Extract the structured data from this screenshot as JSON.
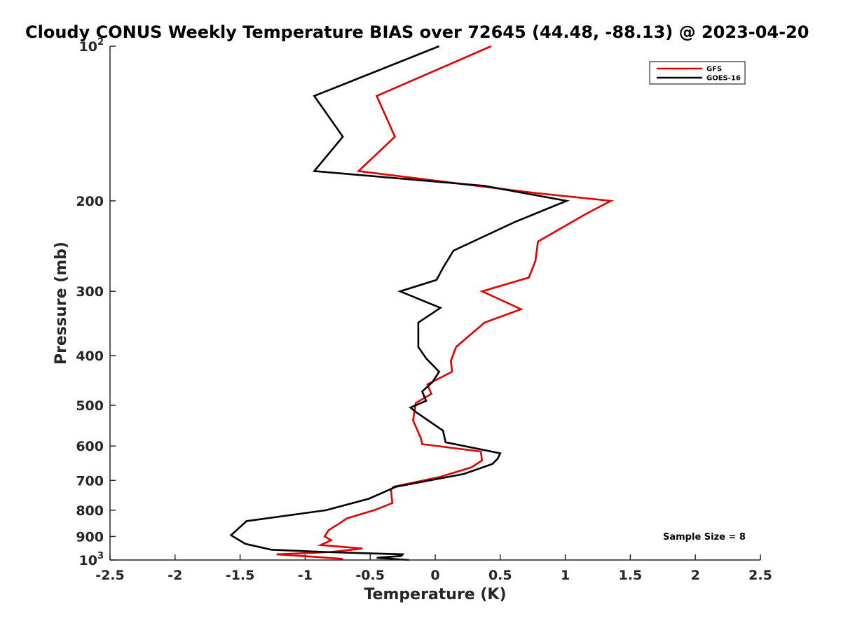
{
  "chart_data": {
    "type": "line",
    "title": "Cloudy CONUS Weekly Temperature BIAS over 72645 (44.48, -88.13) @ 2023-04-20",
    "xlabel": "Temperature (K)",
    "ylabel": "Pressure (mb)",
    "xlim": [
      -2.5,
      2.5
    ],
    "ylim": [
      100,
      1000
    ],
    "yscale": "log",
    "y_reversed": true,
    "grid": false,
    "legend_position": "top-right",
    "x_ticks": [
      -2.5,
      -2,
      -1.5,
      -1,
      -0.5,
      0,
      0.5,
      1,
      1.5,
      2,
      2.5
    ],
    "x_tick_labels": [
      "-2.5",
      "-2",
      "-1.5",
      "-1",
      "-0.5",
      "0",
      "0.5",
      "1",
      "1.5",
      "2",
      "2.5"
    ],
    "y_ticks": [
      100,
      200,
      300,
      400,
      500,
      600,
      700,
      800,
      900,
      1000
    ],
    "y_tick_labels": [
      {
        "base": "10",
        "exp": "2"
      },
      {
        "base": "200",
        "exp": ""
      },
      {
        "base": "300",
        "exp": ""
      },
      {
        "base": "400",
        "exp": ""
      },
      {
        "base": "500",
        "exp": ""
      },
      {
        "base": "600",
        "exp": ""
      },
      {
        "base": "700",
        "exp": ""
      },
      {
        "base": "800",
        "exp": ""
      },
      {
        "base": "900",
        "exp": ""
      },
      {
        "base": "10",
        "exp": "3"
      }
    ],
    "annotation": "Sample Size = 8",
    "series": [
      {
        "name": "GFS",
        "color": "#e00000",
        "points": [
          [
            0.43,
            100
          ],
          [
            -0.45,
            125
          ],
          [
            -0.31,
            150
          ],
          [
            -0.59,
            175
          ],
          [
            0.76,
            193
          ],
          [
            1.35,
            200
          ],
          [
            1.16,
            212
          ],
          [
            0.79,
            240
          ],
          [
            0.77,
            262
          ],
          [
            0.72,
            282
          ],
          [
            0.36,
            300
          ],
          [
            0.66,
            325
          ],
          [
            0.38,
            345
          ],
          [
            0.16,
            385
          ],
          [
            0.12,
            410
          ],
          [
            0.13,
            430
          ],
          [
            -0.06,
            455
          ],
          [
            -0.03,
            475
          ],
          [
            -0.15,
            495
          ],
          [
            -0.17,
            535
          ],
          [
            -0.11,
            580
          ],
          [
            -0.1,
            595
          ],
          [
            0.35,
            615
          ],
          [
            0.36,
            640
          ],
          [
            0.28,
            660
          ],
          [
            0.03,
            690
          ],
          [
            -0.32,
            720
          ],
          [
            -0.34,
            730
          ],
          [
            -0.33,
            775
          ],
          [
            -0.47,
            800
          ],
          [
            -0.68,
            830
          ],
          [
            -0.74,
            850
          ],
          [
            -0.82,
            875
          ],
          [
            -0.85,
            900
          ],
          [
            -0.8,
            915
          ],
          [
            -0.88,
            935
          ],
          [
            -0.56,
            950
          ],
          [
            -0.8,
            965
          ],
          [
            -1.22,
            975
          ],
          [
            -0.95,
            985
          ],
          [
            -0.71,
            995
          ]
        ]
      },
      {
        "name": "GOES-16",
        "color": "#000000",
        "points": [
          [
            0.03,
            100
          ],
          [
            -0.93,
            125
          ],
          [
            -0.71,
            150
          ],
          [
            -0.93,
            175
          ],
          [
            0.38,
            187
          ],
          [
            1.01,
            200
          ],
          [
            0.61,
            220
          ],
          [
            0.14,
            250
          ],
          [
            0.06,
            270
          ],
          [
            0.01,
            285
          ],
          [
            -0.27,
            300
          ],
          [
            0.04,
            323
          ],
          [
            -0.13,
            345
          ],
          [
            -0.13,
            385
          ],
          [
            -0.07,
            405
          ],
          [
            0.03,
            430
          ],
          [
            -0.02,
            450
          ],
          [
            -0.1,
            470
          ],
          [
            -0.07,
            490
          ],
          [
            -0.19,
            505
          ],
          [
            -0.15,
            515
          ],
          [
            0.06,
            560
          ],
          [
            0.08,
            590
          ],
          [
            0.5,
            620
          ],
          [
            0.48,
            635
          ],
          [
            0.44,
            650
          ],
          [
            0.22,
            680
          ],
          [
            -0.3,
            720
          ],
          [
            -0.51,
            760
          ],
          [
            -0.84,
            800
          ],
          [
            -1.45,
            840
          ],
          [
            -1.57,
            895
          ],
          [
            -1.46,
            930
          ],
          [
            -1.26,
            955
          ],
          [
            -0.85,
            965
          ],
          [
            -0.25,
            975
          ],
          [
            -0.26,
            982
          ],
          [
            -0.45,
            990
          ],
          [
            -0.2,
            1000
          ]
        ]
      }
    ]
  }
}
